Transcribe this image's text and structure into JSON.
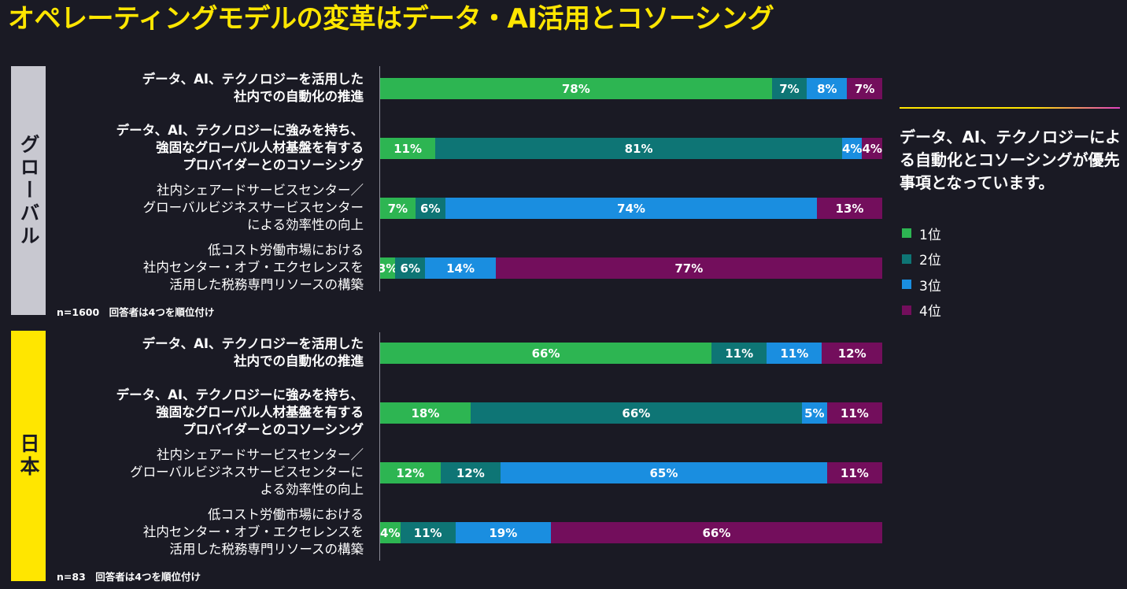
{
  "title": "オペレーティングモデルの変革はデータ・AI活用とコソーシング",
  "regions": [
    {
      "label": "グローバル",
      "note": "n=1600　回答者は4つを順位付け"
    },
    {
      "label": "日本",
      "note": "n=83　回答者は4つを順位付け"
    }
  ],
  "legend_caption": "データ、AI、テクノロジーによる自動化とコソーシングが優先事項となっています。",
  "colors": {
    "rank1": "#2db552",
    "rank2": "#0e7575",
    "rank3": "#1a8ee0",
    "rank4": "#730e5c",
    "title": "#ffe600",
    "japan_box": "#ffe600",
    "global_box": "#c8c8d0"
  },
  "chart_data": [
    {
      "type": "bar",
      "stacked": true,
      "orientation": "horizontal",
      "region": "グローバル",
      "categories": [
        [
          "データ、AI、テクノロジーを活用した",
          "社内での自動化の推進"
        ],
        [
          "データ、AI、テクノロジーに強みを持ち、",
          "強固なグローバル人材基盤を有する",
          "プロバイダーとのコソーシング"
        ],
        [
          "社内シェアードサービスセンター／",
          "グローバルビジネスサービスセンター",
          "による効率性の向上"
        ],
        [
          "低コスト労働市場における",
          "社内センター・オブ・エクセレンスを",
          "活用した税務専門リソースの構築"
        ]
      ],
      "series": [
        {
          "name": "1位",
          "values": [
            78,
            11,
            7,
            3
          ]
        },
        {
          "name": "2位",
          "values": [
            7,
            81,
            6,
            6
          ]
        },
        {
          "name": "3位",
          "values": [
            8,
            4,
            74,
            14
          ]
        },
        {
          "name": "4位",
          "values": [
            7,
            4,
            13,
            77
          ]
        }
      ],
      "xlim": [
        0,
        100
      ],
      "unit": "%"
    },
    {
      "type": "bar",
      "stacked": true,
      "orientation": "horizontal",
      "region": "日本",
      "categories": [
        [
          "データ、AI、テクノロジーを活用した",
          "社内での自動化の推進"
        ],
        [
          "データ、AI、テクノロジーに強みを持ち、",
          "強固なグローバル人材基盤を有する",
          "プロバイダーとのコソーシング"
        ],
        [
          "社内シェアードサービスセンター／",
          "グローバルビジネスサービスセンターに",
          "よる効率性の向上"
        ],
        [
          "低コスト労働市場における",
          "社内センター・オブ・エクセレンスを",
          "活用した税務専門リソースの構築"
        ]
      ],
      "series": [
        {
          "name": "1位",
          "values": [
            66,
            18,
            12,
            4
          ]
        },
        {
          "name": "2位",
          "values": [
            11,
            66,
            12,
            11
          ]
        },
        {
          "name": "3位",
          "values": [
            11,
            5,
            65,
            19
          ]
        },
        {
          "name": "4位",
          "values": [
            12,
            11,
            11,
            66
          ]
        }
      ],
      "xlim": [
        0,
        100
      ],
      "unit": "%"
    }
  ]
}
